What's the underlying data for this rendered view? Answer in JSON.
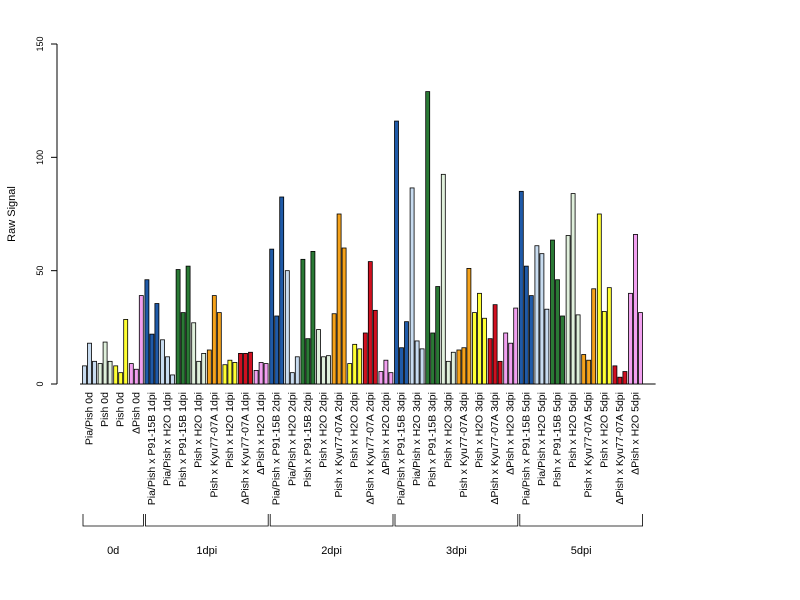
{
  "chart_data": {
    "type": "bar",
    "ylabel": "Raw Signal",
    "ylim": [
      0,
      150
    ],
    "yticks": [
      0,
      50,
      100,
      150
    ],
    "colors": {
      "dark_blue": "#1f5aa8",
      "light_blue": "#c8dcf0",
      "dark_green": "#2a7a35",
      "light_green": "#e0f0dc",
      "orange": "#f5a21b",
      "yellow": "#ffff33",
      "red": "#d01020",
      "pink": "#f2a0f0"
    },
    "categories": [
      {
        "label": "Pia/Pish 0d",
        "color": "light_blue",
        "values": [
          8,
          18,
          10
        ]
      },
      {
        "label": "Pish 0d",
        "color": "light_green",
        "values": [
          9,
          18.5,
          10
        ]
      },
      {
        "label": "Pish 0d",
        "color": "yellow",
        "values": [
          8,
          5,
          28.5
        ]
      },
      {
        "label": "ΔPish 0d",
        "color": "pink",
        "values": [
          9,
          6.5,
          39
        ]
      },
      {
        "label": "Pia/Pish x P91-15B 1dpi",
        "color": "dark_blue",
        "values": [
          46,
          22,
          35.5
        ]
      },
      {
        "label": "Pia/Pish x H2O 1dpi",
        "color": "light_blue",
        "values": [
          19.5,
          12,
          4
        ]
      },
      {
        "label": "Pish x P91-15B 1dpi",
        "color": "dark_green",
        "values": [
          50.5,
          31.5,
          52
        ]
      },
      {
        "label": "Pish x H2O 1dpi",
        "color": "light_green",
        "values": [
          27,
          10,
          13.5
        ]
      },
      {
        "label": "Pish x Kyu77-07A 1dpi",
        "color": "orange",
        "values": [
          15,
          39,
          31.5
        ]
      },
      {
        "label": "Pish x H2O 1dpi",
        "color": "yellow",
        "values": [
          8.5,
          10.5,
          9.5
        ]
      },
      {
        "label": "ΔPish x Kyu77-07A 1dpi",
        "color": "red",
        "values": [
          13.5,
          13.5,
          14
        ]
      },
      {
        "label": "ΔPish x H2O 1dpi",
        "color": "pink",
        "values": [
          6,
          9.5,
          9
        ]
      },
      {
        "label": "Pia/Pish x P91-15B 2dpi",
        "color": "dark_blue",
        "values": [
          59.5,
          30,
          82.5
        ]
      },
      {
        "label": "Pia/Pish x H2O 2dpi",
        "color": "light_blue",
        "values": [
          50,
          5,
          12
        ]
      },
      {
        "label": "Pish x P91-15B 2dpi",
        "color": "dark_green",
        "values": [
          55,
          20,
          58.5
        ]
      },
      {
        "label": "Pish x H2O 2dpi",
        "color": "light_green",
        "values": [
          24,
          12,
          12.5
        ]
      },
      {
        "label": "Pish x Kyu77-07A 2dpi",
        "color": "orange",
        "values": [
          31,
          75,
          60
        ]
      },
      {
        "label": "Pish x H2O 2dpi",
        "color": "yellow",
        "values": [
          9,
          17.5,
          15.5
        ]
      },
      {
        "label": "ΔPish x Kyu77-07A 2dpi",
        "color": "red",
        "values": [
          22.5,
          54,
          32.5
        ]
      },
      {
        "label": "ΔPish x H2O 2dpi",
        "color": "pink",
        "values": [
          5.5,
          10.5,
          5
        ]
      },
      {
        "label": "Pia/Pish x P91-15B 3dpi",
        "color": "dark_blue",
        "values": [
          116,
          16,
          27.5
        ]
      },
      {
        "label": "Pia/Pish x H2O 3dpi",
        "color": "light_blue",
        "values": [
          86.5,
          19,
          15.5
        ]
      },
      {
        "label": "Pish x P91-15B 3dpi",
        "color": "dark_green",
        "values": [
          129,
          22.5,
          43
        ]
      },
      {
        "label": "Pish x H2O 3dpi",
        "color": "light_green",
        "values": [
          92.5,
          10,
          14
        ]
      },
      {
        "label": "Pish x Kyu77-07A 3dpi",
        "color": "orange",
        "values": [
          15,
          16,
          51
        ]
      },
      {
        "label": "Pish x H2O 3dpi",
        "color": "yellow",
        "values": [
          31.5,
          40,
          29
        ]
      },
      {
        "label": "ΔPish x Kyu77-07A 3dpi",
        "color": "red",
        "values": [
          20,
          35,
          10
        ]
      },
      {
        "label": "ΔPish x H2O 3dpi",
        "color": "pink",
        "values": [
          22.5,
          18,
          33.5
        ]
      },
      {
        "label": "Pia/Pish x P91-15B 5dpi",
        "color": "dark_blue",
        "values": [
          85,
          52,
          39
        ]
      },
      {
        "label": "Pia/Pish x H2O 5dpi",
        "color": "light_blue",
        "values": [
          61,
          57.5,
          33
        ]
      },
      {
        "label": "Pish x P91-15B 5dpi",
        "color": "dark_green",
        "values": [
          63.5,
          46,
          30
        ]
      },
      {
        "label": "Pish x H2O 5dpi",
        "color": "light_green",
        "values": [
          65.5,
          84,
          30.5
        ]
      },
      {
        "label": "Pish x Kyu77-07A 5dpi",
        "color": "orange",
        "values": [
          13,
          10.5,
          42
        ]
      },
      {
        "label": "Pish x H2O 5dpi",
        "color": "yellow",
        "values": [
          75,
          32,
          42.5
        ]
      },
      {
        "label": "ΔPish x Kyu77-07A 5dpi",
        "color": "red",
        "values": [
          8,
          3,
          5.5
        ]
      },
      {
        "label": "ΔPish x H2O 5dpi",
        "color": "pink",
        "values": [
          40,
          66,
          31.5
        ]
      }
    ],
    "groups": [
      {
        "label": "0d",
        "start": 0,
        "end": 3
      },
      {
        "label": "1dpi",
        "start": 4,
        "end": 11
      },
      {
        "label": "2dpi",
        "start": 12,
        "end": 19
      },
      {
        "label": "3dpi",
        "start": 20,
        "end": 27
      },
      {
        "label": "5dpi",
        "start": 28,
        "end": 35
      }
    ]
  }
}
